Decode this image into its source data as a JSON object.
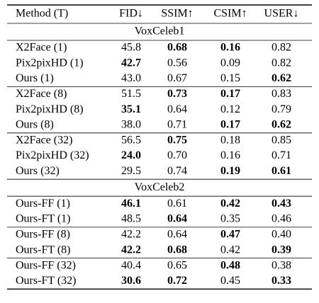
{
  "header": [
    "Method (T)",
    "FID↓",
    "SSIM↑",
    "CSIM↑",
    "USER↓"
  ],
  "sections": [
    {
      "title": "VoxCeleb1",
      "groups": [
        [
          {
            "cells": [
              "X2Face (1)",
              "45.8",
              "0.68",
              "0.16",
              "0.82"
            ],
            "bold": [
              2,
              3
            ]
          },
          {
            "cells": [
              "Pix2pixHD (1)",
              "42.7",
              "0.56",
              "0.09",
              "0.82"
            ],
            "bold": [
              1
            ]
          },
          {
            "cells": [
              "Ours (1)",
              "43.0",
              "0.67",
              "0.15",
              "0.62"
            ],
            "bold": [
              4
            ]
          }
        ],
        [
          {
            "cells": [
              "X2Face (8)",
              "51.5",
              "0.73",
              "0.17",
              "0.83"
            ],
            "bold": [
              2,
              3
            ]
          },
          {
            "cells": [
              "Pix2pixHD (8)",
              "35.1",
              "0.64",
              "0.12",
              "0.79"
            ],
            "bold": [
              1
            ]
          },
          {
            "cells": [
              "Ours (8)",
              "38.0",
              "0.71",
              "0.17",
              "0.62"
            ],
            "bold": [
              3,
              4
            ]
          }
        ],
        [
          {
            "cells": [
              "X2Face (32)",
              "56.5",
              "0.75",
              "0.18",
              "0.85"
            ],
            "bold": [
              2
            ]
          },
          {
            "cells": [
              "Pix2pixHD (32)",
              "24.0",
              "0.70",
              "0.16",
              "0.71"
            ],
            "bold": [
              1
            ]
          },
          {
            "cells": [
              "Ours (32)",
              "29.5",
              "0.74",
              "0.19",
              "0.61"
            ],
            "bold": [
              3,
              4
            ]
          }
        ]
      ]
    },
    {
      "title": "VoxCeleb2",
      "groups": [
        [
          {
            "cells": [
              "Ours-FF (1)",
              "46.1",
              "0.61",
              "0.42",
              "0.43"
            ],
            "bold": [
              1,
              3,
              4
            ]
          },
          {
            "cells": [
              "Ours-FT (1)",
              "48.5",
              "0.64",
              "0.35",
              "0.46"
            ],
            "bold": [
              2
            ]
          }
        ],
        [
          {
            "cells": [
              "Ours-FF (8)",
              "42.2",
              "0.64",
              "0.47",
              "0.40"
            ],
            "bold": [
              3
            ]
          },
          {
            "cells": [
              "Ours-FT (8)",
              "42.2",
              "0.68",
              "0.42",
              "0.39"
            ],
            "bold": [
              1,
              2,
              4
            ]
          }
        ],
        [
          {
            "cells": [
              "Ours-FF (32)",
              "40.4",
              "0.65",
              "0.48",
              "0.38"
            ],
            "bold": [
              3
            ]
          },
          {
            "cells": [
              "Ours-FT (32)",
              "30.6",
              "0.72",
              "0.45",
              "0.33"
            ],
            "bold": [
              1,
              2,
              4
            ],
            "red": [
              4
            ]
          }
        ]
      ]
    }
  ]
}
